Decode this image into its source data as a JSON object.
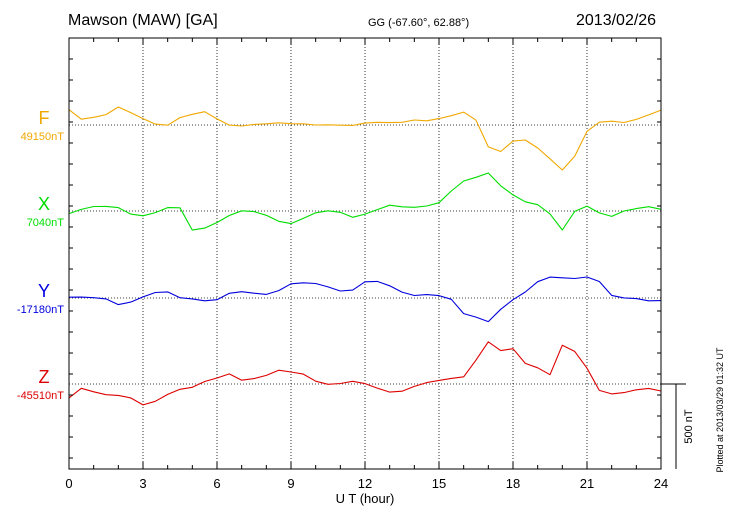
{
  "header": {
    "station": "Mawson (MAW)  [GA]",
    "coords": "GG (-67.60°,  62.88°)",
    "date": "2013/02/26"
  },
  "plotted_note": "Plotted at 2013/03/29 01:32 UT",
  "scale_bar_label": "500 nT",
  "colors": {
    "F": "#f0a800",
    "X": "#00dd00",
    "Y": "#0000dd",
    "Z": "#dd0000"
  },
  "chart_data": {
    "type": "line",
    "title": "Mawson (MAW)  [GA]",
    "xlabel": "U T (hour)",
    "ylabel": "",
    "xlim": [
      0,
      24
    ],
    "x_ticks": [
      0,
      3,
      6,
      9,
      12,
      15,
      18,
      21,
      24
    ],
    "x_tick_labels": [
      "0",
      "3",
      "6",
      "9",
      "12",
      "15",
      "18",
      "21",
      "24"
    ],
    "scale_bar_nT": 500,
    "x": [
      0,
      0.5,
      1,
      1.5,
      2,
      2.5,
      3,
      3.5,
      4,
      4.5,
      5,
      5.5,
      6,
      6.5,
      7,
      7.5,
      8,
      8.5,
      9,
      9.5,
      10,
      10.5,
      11,
      11.5,
      12,
      12.5,
      13,
      13.5,
      14,
      14.5,
      15,
      15.5,
      16,
      16.5,
      17,
      17.5,
      18,
      18.5,
      19,
      19.5,
      20,
      20.5,
      21,
      21.5,
      22,
      22.5,
      23,
      23.5,
      24
    ],
    "series": [
      {
        "name": "F",
        "baseline_label": "49150nT",
        "color": "#f0a800",
        "values": [
          90,
          60,
          70,
          60,
          80,
          50,
          40,
          30,
          20,
          40,
          40,
          60,
          40,
          20,
          10,
          0,
          -10,
          0,
          10,
          20,
          10,
          0,
          -10,
          -10,
          10,
          20,
          20,
          20,
          30,
          20,
          30,
          50,
          80,
          40,
          -120,
          -160,
          -110,
          -100,
          -130,
          -180,
          -250,
          -190,
          -60,
          0,
          30,
          40,
          50,
          50,
          60
        ]
      },
      {
        "name": "X",
        "baseline_label": "7040nT",
        "color": "#00dd00",
        "values": [
          10,
          20,
          10,
          0,
          10,
          0,
          0,
          0,
          0,
          -10,
          -120,
          -80,
          -40,
          -20,
          -20,
          -30,
          -30,
          -40,
          -50,
          -40,
          -30,
          -20,
          -10,
          -20,
          0,
          10,
          20,
          10,
          20,
          40,
          60,
          120,
          170,
          190,
          220,
          150,
          100,
          60,
          40,
          -20,
          -120,
          -10,
          30,
          0,
          -20,
          0,
          0,
          10,
          10
        ]
      },
      {
        "name": "Y",
        "baseline_label": "-17180nT",
        "color": "#0000dd",
        "values": [
          0,
          -10,
          -10,
          0,
          -20,
          -10,
          0,
          10,
          20,
          10,
          20,
          0,
          -20,
          0,
          20,
          40,
          50,
          60,
          70,
          60,
          70,
          80,
          70,
          60,
          80,
          70,
          60,
          50,
          40,
          30,
          0,
          -30,
          -100,
          -100,
          -120,
          -60,
          -20,
          20,
          90,
          130,
          130,
          120,
          120,
          90,
          10,
          0,
          0,
          -10,
          -10
        ]
      },
      {
        "name": "Z",
        "baseline_label": "-45510nT",
        "color": "#dd0000",
        "values": [
          -80,
          -20,
          -40,
          -60,
          -70,
          -90,
          -130,
          -100,
          -50,
          -20,
          -20,
          0,
          20,
          60,
          40,
          50,
          50,
          60,
          50,
          60,
          40,
          20,
          0,
          -10,
          -20,
          -20,
          -20,
          -20,
          -20,
          -20,
          0,
          40,
          70,
          160,
          240,
          170,
          190,
          130,
          120,
          70,
          220,
          170,
          80,
          -30,
          -40,
          -40,
          -40,
          -40,
          -50
        ]
      }
    ]
  }
}
